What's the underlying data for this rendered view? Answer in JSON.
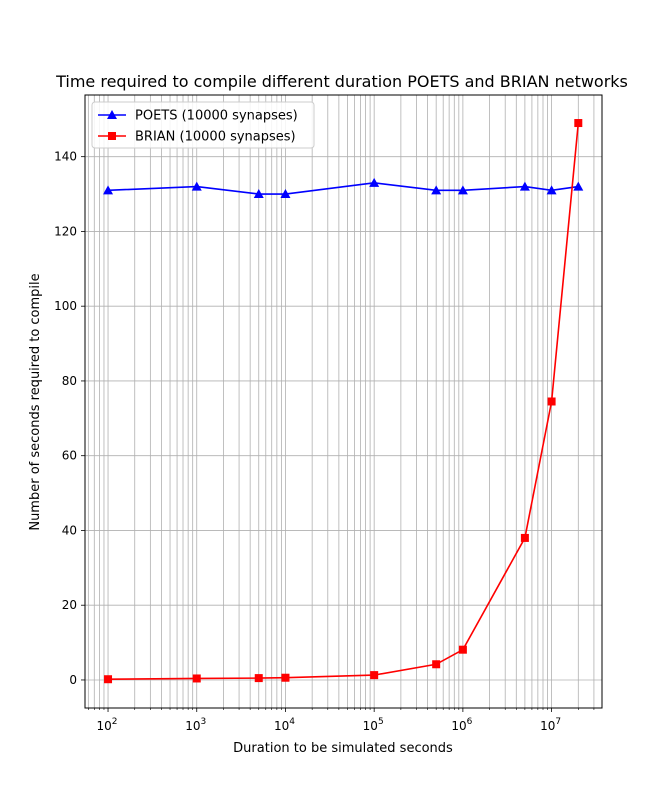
{
  "chart_data": {
    "type": "line",
    "title": "Time required to compile different duration POETS and BRIAN networks",
    "xlabel": "Duration to be simulated seconds",
    "ylabel": "Number of seconds required to compile",
    "xscale": "log",
    "xlim": [
      55,
      37000000
    ],
    "ylim": [
      -7.5,
      156.5
    ],
    "grid": "both (major and minor)",
    "legend_position": "top-left",
    "x_ticks": [
      {
        "value": 100,
        "base": "10",
        "exp": "2"
      },
      {
        "value": 1000,
        "base": "10",
        "exp": "3"
      },
      {
        "value": 10000,
        "base": "10",
        "exp": "4"
      },
      {
        "value": 100000,
        "base": "10",
        "exp": "5"
      },
      {
        "value": 1000000,
        "base": "10",
        "exp": "6"
      },
      {
        "value": 10000000,
        "base": "10",
        "exp": "7"
      }
    ],
    "y_ticks": [
      0,
      20,
      40,
      60,
      80,
      100,
      120,
      140
    ],
    "series": [
      {
        "name": "POETS (10000 synapses)",
        "color": "#0000ff",
        "marker": "triangle",
        "x": [
          100,
          1000,
          5000,
          10000,
          100000,
          500000,
          1000000,
          5000000,
          10000000,
          20000000
        ],
        "y": [
          131,
          132,
          130,
          130,
          133,
          131,
          131,
          132,
          131,
          132
        ]
      },
      {
        "name": "BRIAN (10000 synapses)",
        "color": "#ff0000",
        "marker": "square",
        "x": [
          100,
          1000,
          5000,
          10000,
          100000,
          500000,
          1000000,
          5000000,
          10000000,
          20000000
        ],
        "y": [
          0.2,
          0.4,
          0.5,
          0.6,
          1.3,
          4.2,
          8.1,
          38,
          74.5,
          149
        ]
      }
    ]
  }
}
